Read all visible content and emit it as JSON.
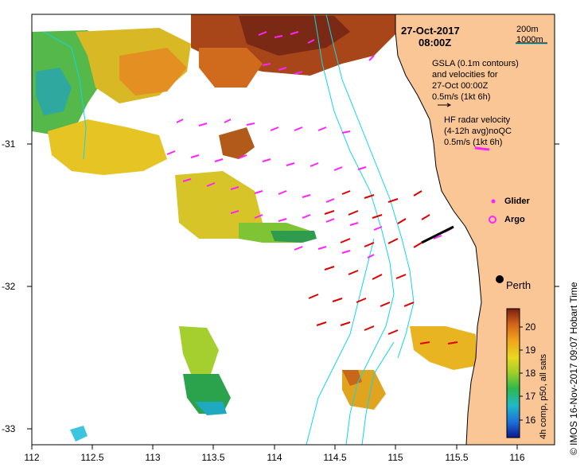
{
  "title": {
    "date": "27-Oct-2017",
    "time": "08:00Z"
  },
  "depth_legend": {
    "label_200": "200m",
    "label_1000": "1000m"
  },
  "legend": {
    "gsla_line1": "GSLA (0.1m contours)",
    "gsla_line2": "and velocities for",
    "gsla_line3": "27-Oct 00:00Z",
    "gsla_scale": "0.5m/s (1kt 6h)",
    "hf_line1": "HF radar velocity",
    "hf_line2": "(4-12h avg)noQC",
    "hf_scale": "0.5m/s (1kt 6h)",
    "glider": "Glider",
    "argo": "Argo"
  },
  "city": "Perth",
  "colorbar": {
    "title": "4h comp, p50, all sats",
    "ticks": [
      "16",
      "17",
      "18",
      "19",
      "20"
    ],
    "range": [
      15.5,
      20.8
    ]
  },
  "x_ticks": [
    "112",
    "112.5",
    "113",
    "113.5",
    "114",
    "114.5",
    "115",
    "115.5",
    "116"
  ],
  "y_ticks": [
    "-31",
    "-32",
    "-33"
  ],
  "credit": "© IMOS 16-Nov-2017 09:07 Hobart Time",
  "colors": {
    "land": "#FAC695",
    "isobath": "#10D6E8",
    "hf_arrow": "#DD0000",
    "gsla_arrow": "#FF22FF"
  }
}
